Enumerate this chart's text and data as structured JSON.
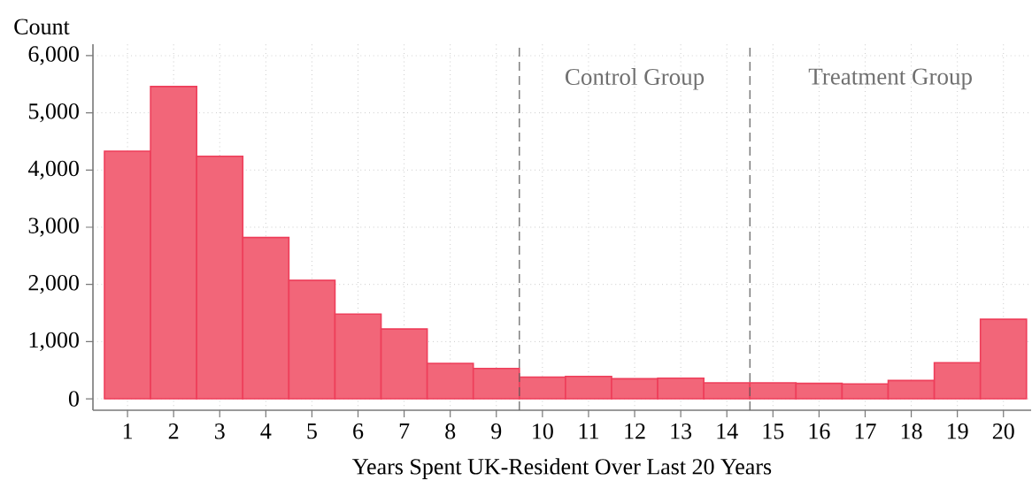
{
  "chart_data": {
    "type": "histogram",
    "xlabel": "Years Spent UK-Resident Over Last 20 Years",
    "ylabel": "Count",
    "bins": [
      0.5,
      1.5,
      2.5,
      3.5,
      4.5,
      5.5,
      6.5,
      7.5,
      8.5,
      9.5,
      10.5,
      11.5,
      12.5,
      13.5,
      14.5,
      15.5,
      16.5,
      17.5,
      18.5,
      19.5,
      20.5
    ],
    "values": [
      4330,
      5460,
      4240,
      2820,
      2070,
      1480,
      1220,
      620,
      530,
      380,
      390,
      350,
      360,
      280,
      280,
      270,
      260,
      320,
      630,
      1390
    ],
    "color": "#f26679",
    "xlim": [
      0.25,
      20.6
    ],
    "ylim": [
      -200,
      6200
    ],
    "xticks": [
      1,
      2,
      3,
      4,
      5,
      6,
      7,
      8,
      9,
      10,
      11,
      12,
      13,
      14,
      15,
      16,
      17,
      18,
      19,
      20
    ],
    "yticks": [
      0,
      {
        "value": 1000,
        "label": "1,000"
      },
      {
        "value": 2000,
        "label": "2,000"
      },
      {
        "value": 3000,
        "label": "3,000"
      },
      {
        "value": 4000,
        "label": "4,000"
      },
      {
        "value": 5000,
        "label": "5,000"
      },
      {
        "value": 6000,
        "label": "6,000"
      }
    ],
    "grid": true,
    "ref_lines": [
      {
        "axis": "x",
        "value": 9.5,
        "color": "#606060",
        "line_style": "dashed"
      },
      {
        "axis": "x",
        "value": 14.5,
        "color": "#606060",
        "line_style": "dashed"
      }
    ],
    "annotations": [
      "Control Group",
      "Treatment Group"
    ]
  }
}
